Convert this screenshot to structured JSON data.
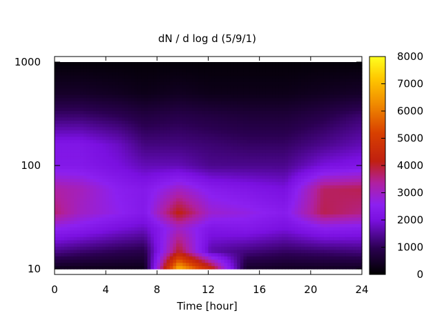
{
  "chart_data": {
    "type": "heatmap",
    "title": "dN / d log d (5/9/1)",
    "xlabel": "Time [hour]",
    "ylabel": "",
    "x_ticks": [
      0,
      4,
      8,
      12,
      16,
      20,
      24
    ],
    "xlim": [
      0,
      24
    ],
    "y_ticks": [
      10,
      100,
      1000
    ],
    "ylim": [
      10,
      1000
    ],
    "y_scale": "log",
    "colorbar": {
      "ticks": [
        0,
        1000,
        2000,
        3000,
        4000,
        5000,
        6000,
        7000,
        8000
      ],
      "range": [
        0,
        8000
      ],
      "palette": "black-purple-red-orange-yellow"
    },
    "grid": false,
    "legend": "none",
    "features": [
      {
        "time_h": 9.8,
        "size": 10.5,
        "value": 7000,
        "note_type": "peak"
      },
      {
        "time_h": 12.2,
        "size": 10.5,
        "value": 4500,
        "note_type": "peak"
      },
      {
        "time_h": 9.6,
        "size": 35,
        "value": 4200,
        "note_type": "band"
      },
      {
        "time_h": 21.5,
        "size": 40,
        "value": 3800,
        "note_type": "band"
      },
      {
        "time_h": 2.0,
        "size": 50,
        "value": 3300,
        "note_type": "band"
      }
    ],
    "profiles": [
      {
        "time_h": 0,
        "size": [
          10,
          15,
          25,
          35,
          60,
          100,
          160,
          300,
          500,
          1000
        ],
        "value": [
          300,
          1400,
          2600,
          3600,
          3300,
          2300,
          2200,
          1200,
          500,
          100
        ]
      },
      {
        "time_h": 2,
        "size": [
          10,
          15,
          25,
          35,
          60,
          100,
          160,
          300,
          500,
          1000
        ],
        "value": [
          300,
          1200,
          2400,
          3000,
          3100,
          2300,
          2200,
          1200,
          500,
          100
        ]
      },
      {
        "time_h": 5,
        "size": [
          10,
          15,
          25,
          35,
          60,
          100,
          160,
          300,
          500,
          1000
        ],
        "value": [
          300,
          1000,
          2000,
          2600,
          2500,
          2000,
          1800,
          1000,
          400,
          100
        ]
      },
      {
        "time_h": 7,
        "size": [
          10,
          15,
          25,
          35,
          60,
          100,
          160,
          300,
          500,
          1000
        ],
        "value": [
          300,
          900,
          1800,
          2300,
          2300,
          1700,
          1300,
          800,
          300,
          100
        ]
      },
      {
        "time_h": 9.7,
        "size": [
          10,
          15,
          25,
          35,
          60,
          100,
          160,
          300,
          500,
          1000
        ],
        "value": [
          7000,
          4000,
          3000,
          4200,
          3000,
          1700,
          1300,
          900,
          400,
          100
        ]
      },
      {
        "time_h": 12.2,
        "size": [
          10,
          15,
          25,
          35,
          60,
          100,
          160,
          300,
          500,
          1000
        ],
        "value": [
          4500,
          1600,
          2200,
          2900,
          2400,
          1400,
          1200,
          800,
          300,
          100
        ]
      },
      {
        "time_h": 15,
        "size": [
          10,
          15,
          25,
          35,
          60,
          100,
          160,
          300,
          500,
          1000
        ],
        "value": [
          500,
          1300,
          2300,
          2700,
          2200,
          1400,
          1100,
          700,
          300,
          100
        ]
      },
      {
        "time_h": 18,
        "size": [
          10,
          15,
          25,
          35,
          60,
          100,
          160,
          300,
          500,
          1000
        ],
        "value": [
          400,
          1100,
          2000,
          2400,
          2000,
          1400,
          1100,
          700,
          300,
          100
        ]
      },
      {
        "time_h": 21,
        "size": [
          10,
          15,
          25,
          35,
          60,
          100,
          160,
          300,
          500,
          1000
        ],
        "value": [
          400,
          1200,
          2500,
          3800,
          3700,
          2000,
          1400,
          900,
          400,
          100
        ]
      },
      {
        "time_h": 24,
        "size": [
          10,
          15,
          25,
          35,
          60,
          100,
          160,
          300,
          500,
          1000
        ],
        "value": [
          400,
          1300,
          2400,
          3500,
          3800,
          2200,
          1700,
          1200,
          500,
          100
        ]
      }
    ]
  }
}
